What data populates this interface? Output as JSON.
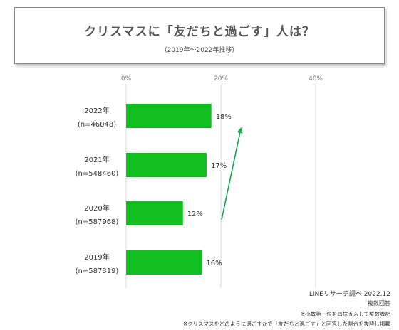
{
  "header": {
    "title": "クリスマスに「友だちと過ごす」人は？",
    "subtitle": "（2019年〜2022年推移）"
  },
  "chart_data": {
    "type": "bar",
    "orientation": "horizontal",
    "xlim": [
      0,
      40
    ],
    "x_ticks": [
      "0%",
      "20%",
      "40%"
    ],
    "x_tick_values": [
      0,
      20,
      40
    ],
    "grid": true,
    "categories": [
      {
        "year": "2022年",
        "n": "(n=46048)"
      },
      {
        "year": "2021年",
        "n": "(n=548460)"
      },
      {
        "year": "2020年",
        "n": "(n=587968)"
      },
      {
        "year": "2019年",
        "n": "(n=587319)"
      }
    ],
    "values": [
      18,
      17,
      12,
      16
    ],
    "value_labels": [
      "18%",
      "17%",
      "12%",
      "16%"
    ],
    "bar_color": "#11bf20",
    "trend_arrow": {
      "color": "#11a84a",
      "from_category": "2020年",
      "to_category": "2022年",
      "direction": "up"
    }
  },
  "footer": {
    "source": "LINEリサーチ調べ 2022.12",
    "note_multiple": "複数回答",
    "note_rounding": "※小数第一位を四捨五入して整数表記",
    "note_extract": "※クリスマスをどのように過ごすかで「友だちと過ごす」と回答した割合を抜粋し掲載"
  }
}
